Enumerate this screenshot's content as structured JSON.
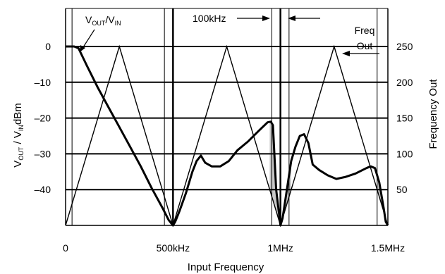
{
  "chart_data": {
    "type": "line",
    "xlabel": "Input Frequency",
    "ylabel_left": "V",
    "ylabel_left_sub1": "OUT",
    "ylabel_left_mid": " / V",
    "ylabel_left_sub2": "IN",
    "ylabel_left_unit": "dBm",
    "ylabel_right": "Frequency Out",
    "x_range_khz": [
      0,
      1500
    ],
    "y_left_range_db": [
      -50,
      0
    ],
    "y_right_range": [
      0,
      250
    ],
    "x_ticks": [
      {
        "value": 0,
        "label": "0"
      },
      {
        "value": 500,
        "label": "500kHz"
      },
      {
        "value": 1000,
        "label": "1MHz"
      },
      {
        "value": 1500,
        "label": "1.5MHz"
      }
    ],
    "y_left_ticks": [
      {
        "value": 0,
        "label": "0"
      },
      {
        "value": -10,
        "label": "–10"
      },
      {
        "value": -20,
        "label": "–20"
      },
      {
        "value": -30,
        "label": "–30"
      },
      {
        "value": -40,
        "label": "–40"
      }
    ],
    "y_right_ticks": [
      {
        "value": 250,
        "label": "250"
      },
      {
        "value": 200,
        "label": "200"
      },
      {
        "value": 150,
        "label": "150"
      },
      {
        "value": 100,
        "label": "100"
      },
      {
        "value": 50,
        "label": "50"
      }
    ],
    "grid": true,
    "annotations": {
      "vout_vin_main": "V",
      "vout_vin_sub1": "OUT",
      "vout_vin_slash": "/V",
      "vout_vin_sub2": "IN",
      "bandwidth": "100kHz",
      "freq_line1": "Freq",
      "freq_line2": "Out"
    },
    "frequency_out_series": {
      "x": [
        0,
        250,
        500,
        750,
        1000,
        1250,
        1500
      ],
      "y": [
        0,
        250,
        0,
        250,
        0,
        250,
        0
      ]
    },
    "vout_vin_series": {
      "x": [
        0,
        40,
        60,
        100,
        150,
        200,
        250,
        300,
        350,
        400,
        450,
        480,
        500,
        510,
        530,
        560,
        590,
        610,
        630,
        650,
        680,
        720,
        760,
        800,
        850,
        900,
        940,
        955,
        965,
        980,
        1000,
        1010,
        1030,
        1050,
        1070,
        1090,
        1110,
        1130,
        1150,
        1180,
        1220,
        1260,
        1300,
        1350,
        1400,
        1420,
        1440,
        1460,
        1480,
        1490,
        1500
      ],
      "y": [
        0,
        0,
        -0.5,
        -5.5,
        -11.5,
        -17,
        -22.5,
        -28,
        -33.5,
        -39.5,
        -45,
        -48.5,
        -50,
        -49,
        -46,
        -41,
        -35,
        -32,
        -30.5,
        -32.5,
        -33.5,
        -33.5,
        -32,
        -29,
        -26.5,
        -23.5,
        -21.2,
        -21,
        -22,
        -40,
        -50,
        -48,
        -40,
        -32,
        -28,
        -25,
        -24.5,
        -27,
        -33,
        -34.5,
        -36,
        -37,
        -36.5,
        -35.5,
        -34,
        -33.5,
        -34,
        -38,
        -45,
        -49,
        -50
      ]
    },
    "shaded_regions_khz": [
      [
        450,
        510
      ],
      [
        950,
        1050
      ],
      [
        1450,
        1500
      ]
    ],
    "marker_lines_khz": [
      30,
      460,
      500,
      960,
      1000,
      1040,
      1450
    ]
  }
}
